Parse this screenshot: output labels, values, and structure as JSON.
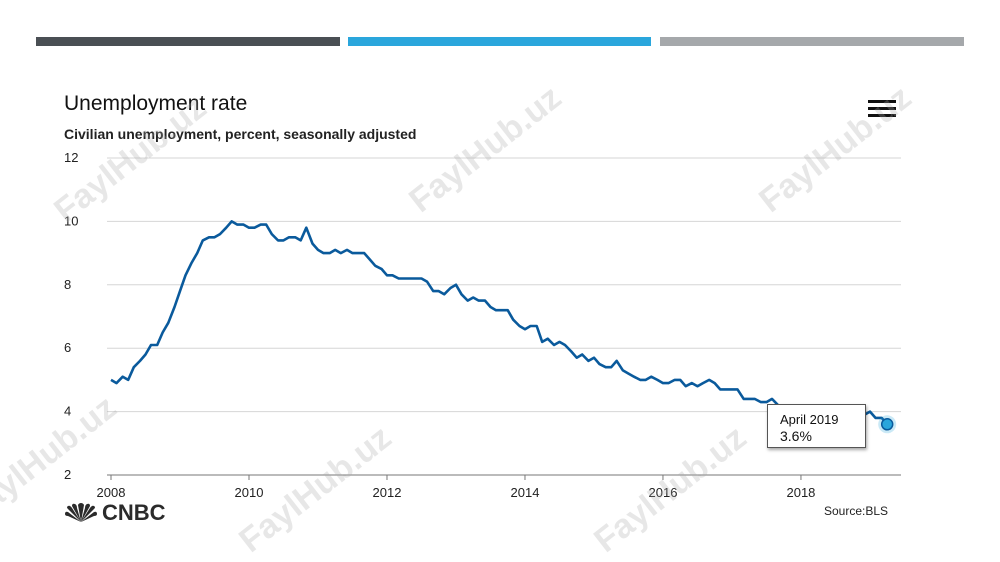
{
  "header": {
    "title": "Unemployment rate",
    "subtitle": "Civilian unemployment, percent, seasonally adjusted",
    "menu_icon": "hamburger-menu-icon"
  },
  "decor": {
    "bar_colors": [
      "#4a4f54",
      "#2aa6dc",
      "#a5a8ab"
    ]
  },
  "footer": {
    "logo": "CNBC",
    "source": "Source:BLS"
  },
  "watermark": "FaylHub.uz",
  "tooltip": {
    "date": "April 2019",
    "value": "3.6%"
  },
  "chart_data": {
    "type": "line",
    "title": "Unemployment rate",
    "subtitle": "Civilian unemployment, percent, seasonally adjusted",
    "xlabel": "",
    "ylabel": "",
    "xlim": [
      2008.0,
      2019.45
    ],
    "ylim": [
      2,
      12
    ],
    "y_ticks": [
      2,
      4,
      6,
      8,
      10,
      12
    ],
    "x_ticks": [
      2008,
      2010,
      2012,
      2014,
      2016,
      2018
    ],
    "grid": true,
    "color": "#0a5a9c",
    "highlight": {
      "x": 2019.25,
      "y": 3.6,
      "label": "April 2019",
      "value_label": "3.6%"
    },
    "series": [
      {
        "values": [
          [
            2008.0,
            5.0
          ],
          [
            2008.08,
            4.9
          ],
          [
            2008.17,
            5.1
          ],
          [
            2008.25,
            5.0
          ],
          [
            2008.33,
            5.4
          ],
          [
            2008.42,
            5.6
          ],
          [
            2008.5,
            5.8
          ],
          [
            2008.58,
            6.1
          ],
          [
            2008.67,
            6.1
          ],
          [
            2008.75,
            6.5
          ],
          [
            2008.83,
            6.8
          ],
          [
            2008.92,
            7.3
          ],
          [
            2009.0,
            7.8
          ],
          [
            2009.08,
            8.3
          ],
          [
            2009.17,
            8.7
          ],
          [
            2009.25,
            9.0
          ],
          [
            2009.33,
            9.4
          ],
          [
            2009.42,
            9.5
          ],
          [
            2009.5,
            9.5
          ],
          [
            2009.58,
            9.6
          ],
          [
            2009.67,
            9.8
          ],
          [
            2009.75,
            10.0
          ],
          [
            2009.83,
            9.9
          ],
          [
            2009.92,
            9.9
          ],
          [
            2010.0,
            9.8
          ],
          [
            2010.08,
            9.8
          ],
          [
            2010.17,
            9.9
          ],
          [
            2010.25,
            9.9
          ],
          [
            2010.33,
            9.6
          ],
          [
            2010.42,
            9.4
          ],
          [
            2010.5,
            9.4
          ],
          [
            2010.58,
            9.5
          ],
          [
            2010.67,
            9.5
          ],
          [
            2010.75,
            9.4
          ],
          [
            2010.83,
            9.8
          ],
          [
            2010.92,
            9.3
          ],
          [
            2011.0,
            9.1
          ],
          [
            2011.08,
            9.0
          ],
          [
            2011.17,
            9.0
          ],
          [
            2011.25,
            9.1
          ],
          [
            2011.33,
            9.0
          ],
          [
            2011.42,
            9.1
          ],
          [
            2011.5,
            9.0
          ],
          [
            2011.58,
            9.0
          ],
          [
            2011.67,
            9.0
          ],
          [
            2011.75,
            8.8
          ],
          [
            2011.83,
            8.6
          ],
          [
            2011.92,
            8.5
          ],
          [
            2012.0,
            8.3
          ],
          [
            2012.08,
            8.3
          ],
          [
            2012.17,
            8.2
          ],
          [
            2012.25,
            8.2
          ],
          [
            2012.33,
            8.2
          ],
          [
            2012.42,
            8.2
          ],
          [
            2012.5,
            8.2
          ],
          [
            2012.58,
            8.1
          ],
          [
            2012.67,
            7.8
          ],
          [
            2012.75,
            7.8
          ],
          [
            2012.83,
            7.7
          ],
          [
            2012.92,
            7.9
          ],
          [
            2013.0,
            8.0
          ],
          [
            2013.08,
            7.7
          ],
          [
            2013.17,
            7.5
          ],
          [
            2013.25,
            7.6
          ],
          [
            2013.33,
            7.5
          ],
          [
            2013.42,
            7.5
          ],
          [
            2013.5,
            7.3
          ],
          [
            2013.58,
            7.2
          ],
          [
            2013.67,
            7.2
          ],
          [
            2013.75,
            7.2
          ],
          [
            2013.83,
            6.9
          ],
          [
            2013.92,
            6.7
          ],
          [
            2014.0,
            6.6
          ],
          [
            2014.08,
            6.7
          ],
          [
            2014.17,
            6.7
          ],
          [
            2014.25,
            6.2
          ],
          [
            2014.33,
            6.3
          ],
          [
            2014.42,
            6.1
          ],
          [
            2014.5,
            6.2
          ],
          [
            2014.58,
            6.1
          ],
          [
            2014.67,
            5.9
          ],
          [
            2014.75,
            5.7
          ],
          [
            2014.83,
            5.8
          ],
          [
            2014.92,
            5.6
          ],
          [
            2015.0,
            5.7
          ],
          [
            2015.08,
            5.5
          ],
          [
            2015.17,
            5.4
          ],
          [
            2015.25,
            5.4
          ],
          [
            2015.33,
            5.6
          ],
          [
            2015.42,
            5.3
          ],
          [
            2015.5,
            5.2
          ],
          [
            2015.58,
            5.1
          ],
          [
            2015.67,
            5.0
          ],
          [
            2015.75,
            5.0
          ],
          [
            2015.83,
            5.1
          ],
          [
            2015.92,
            5.0
          ],
          [
            2016.0,
            4.9
          ],
          [
            2016.08,
            4.9
          ],
          [
            2016.17,
            5.0
          ],
          [
            2016.25,
            5.0
          ],
          [
            2016.33,
            4.8
          ],
          [
            2016.42,
            4.9
          ],
          [
            2016.5,
            4.8
          ],
          [
            2016.58,
            4.9
          ],
          [
            2016.67,
            5.0
          ],
          [
            2016.75,
            4.9
          ],
          [
            2016.83,
            4.7
          ],
          [
            2016.92,
            4.7
          ],
          [
            2017.0,
            4.7
          ],
          [
            2017.08,
            4.7
          ],
          [
            2017.17,
            4.4
          ],
          [
            2017.25,
            4.4
          ],
          [
            2017.33,
            4.4
          ],
          [
            2017.42,
            4.3
          ],
          [
            2017.5,
            4.3
          ],
          [
            2017.58,
            4.4
          ],
          [
            2017.67,
            4.2
          ],
          [
            2017.75,
            4.1
          ],
          [
            2017.83,
            4.1
          ],
          [
            2017.92,
            4.1
          ],
          [
            2018.0,
            4.1
          ],
          [
            2018.08,
            4.1
          ],
          [
            2018.17,
            4.0
          ],
          [
            2018.25,
            3.9
          ],
          [
            2018.33,
            3.8
          ],
          [
            2018.42,
            4.0
          ],
          [
            2018.5,
            3.9
          ],
          [
            2018.58,
            3.8
          ],
          [
            2018.67,
            3.7
          ],
          [
            2018.75,
            3.8
          ],
          [
            2018.83,
            3.7
          ],
          [
            2018.92,
            3.9
          ],
          [
            2019.0,
            4.0
          ],
          [
            2019.08,
            3.8
          ],
          [
            2019.17,
            3.8
          ],
          [
            2019.25,
            3.6
          ]
        ]
      }
    ]
  }
}
